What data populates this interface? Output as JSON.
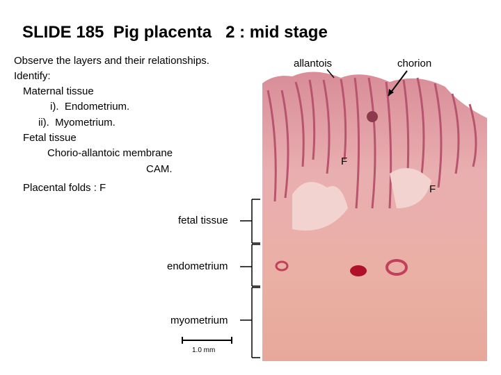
{
  "title": "SLIDE 185  Pig placenta   2 : mid stage",
  "instructions": [
    "Observe the layers and their relationships.",
    "Identify:",
    "Maternal tissue",
    "i).  Endometrium.",
    "ii).  Myometrium.",
    "Fetal tissue",
    "Chorio-allantoic membrane",
    "CAM.",
    "Placental folds : F"
  ],
  "labels": {
    "allantois": "allantois",
    "chorion": "chorion",
    "fold_markers": [
      "F",
      "F"
    ]
  },
  "layers": [
    "fetal tissue",
    "endometrium",
    "myometrium"
  ],
  "scale_bar": "1.0 mm"
}
